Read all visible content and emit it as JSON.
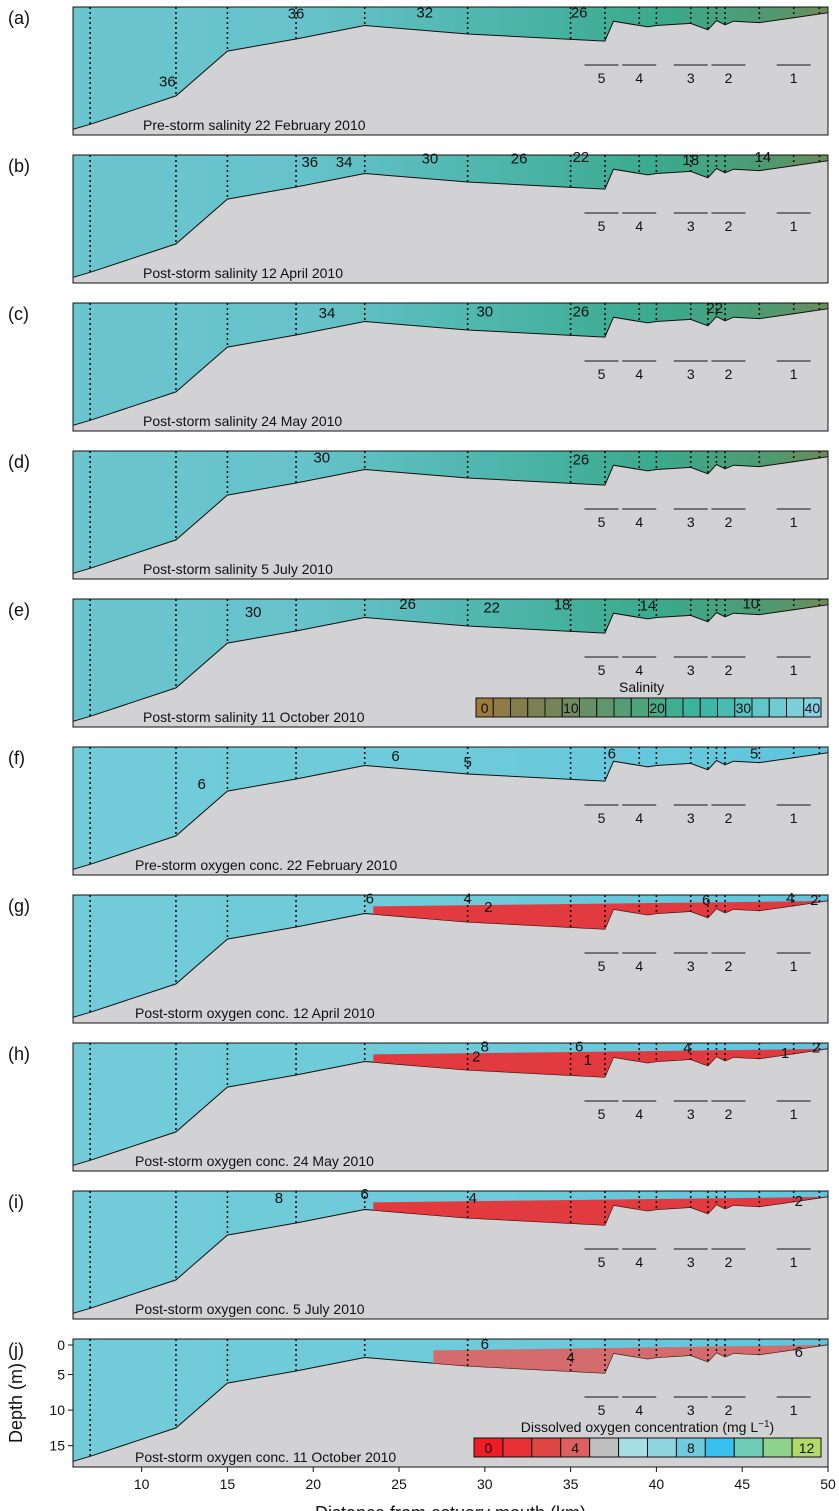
{
  "chart_data": {
    "type": "contour-section",
    "xlabel": "Distance from estuary mouth (km)",
    "ylabel": "Depth (m)",
    "xlim": [
      6,
      50
    ],
    "ylim": [
      0,
      18
    ],
    "xticks": [
      10,
      15,
      20,
      25,
      30,
      35,
      40,
      45,
      50
    ],
    "yticks": [
      0,
      5,
      10,
      15
    ],
    "bottom_profile_km": [
      6,
      7,
      12,
      15,
      19,
      23,
      29,
      37,
      37.5,
      39.5,
      40,
      42,
      43,
      43.5,
      44,
      44.5,
      46,
      48,
      50
    ],
    "bottom_profile_depth_m": [
      17.2,
      16.5,
      12.5,
      6.2,
      4.5,
      2.6,
      3.8,
      4.8,
      2.0,
      2.8,
      2.6,
      2.3,
      3.2,
      1.9,
      2.5,
      2.0,
      2.2,
      1.5,
      0.8
    ],
    "stations": [
      {
        "label": "5",
        "km": 36.8
      },
      {
        "label": "4",
        "km": 39.0
      },
      {
        "label": "3",
        "km": 42.0
      },
      {
        "label": "2",
        "km": 44.2
      },
      {
        "label": "1",
        "km": 48.0
      }
    ],
    "panels": [
      {
        "id": "(a)",
        "caption": "Pre-storm salinity 22 February 2010",
        "variable": "salinity",
        "contour_labels": [
          {
            "v": "36",
            "x": 19.0,
            "y": 0.9
          },
          {
            "v": "32",
            "x": 26.5,
            "y": 0.8
          },
          {
            "v": "26",
            "x": 35.5,
            "y": 0.8
          },
          {
            "v": "36",
            "x": 11.5,
            "y": 10.5
          }
        ]
      },
      {
        "id": "(b)",
        "caption": "Post-storm salinity 12 April 2010",
        "variable": "salinity",
        "contour_labels": [
          {
            "v": "36",
            "x": 19.8,
            "y": 1.0
          },
          {
            "v": "34",
            "x": 21.8,
            "y": 1.0
          },
          {
            "v": "30",
            "x": 26.8,
            "y": 0.5
          },
          {
            "v": "26",
            "x": 32.0,
            "y": 0.5
          },
          {
            "v": "22",
            "x": 35.6,
            "y": 0.3
          },
          {
            "v": "18",
            "x": 42.0,
            "y": 0.7
          },
          {
            "v": "14",
            "x": 46.2,
            "y": 0.3
          }
        ]
      },
      {
        "id": "(c)",
        "caption": "Post-storm salinity 24 May 2010",
        "variable": "salinity",
        "contour_labels": [
          {
            "v": "34",
            "x": 20.8,
            "y": 1.4
          },
          {
            "v": "30",
            "x": 30.0,
            "y": 1.2
          },
          {
            "v": "26",
            "x": 35.6,
            "y": 1.2
          },
          {
            "v": "22",
            "x": 43.4,
            "y": 0.7
          }
        ]
      },
      {
        "id": "(d)",
        "caption": "Post-storm salinity 5 July 2010",
        "variable": "salinity",
        "contour_labels": [
          {
            "v": "30",
            "x": 20.5,
            "y": 0.9
          },
          {
            "v": "26",
            "x": 35.6,
            "y": 1.2
          }
        ]
      },
      {
        "id": "(e)",
        "caption": "Post-storm salinity 11 October 2010",
        "variable": "salinity",
        "contour_labels": [
          {
            "v": "30",
            "x": 16.5,
            "y": 1.8
          },
          {
            "v": "26",
            "x": 25.5,
            "y": 0.7
          },
          {
            "v": "22",
            "x": 30.4,
            "y": 1.2
          },
          {
            "v": "18",
            "x": 34.5,
            "y": 0.8
          },
          {
            "v": "14",
            "x": 39.5,
            "y": 0.9
          },
          {
            "v": "10",
            "x": 45.5,
            "y": 0.6
          }
        ]
      },
      {
        "id": "(f)",
        "caption": "Pre-storm oxygen conc. 22 February 2010",
        "variable": "oxygen",
        "contour_labels": [
          {
            "v": "6",
            "x": 24.8,
            "y": 1.3
          },
          {
            "v": "6",
            "x": 13.5,
            "y": 5.2
          },
          {
            "v": "5",
            "x": 29.0,
            "y": 2.1
          },
          {
            "v": "6",
            "x": 37.4,
            "y": 0.9
          },
          {
            "v": "5",
            "x": 45.7,
            "y": 0.9
          }
        ]
      },
      {
        "id": "(g)",
        "caption": "Post-storm oxygen conc. 12 April 2010",
        "variable": "oxygen",
        "contour_labels": [
          {
            "v": "6",
            "x": 23.3,
            "y": 0.5
          },
          {
            "v": "4",
            "x": 29.0,
            "y": 0.5
          },
          {
            "v": "2",
            "x": 30.2,
            "y": 1.7
          },
          {
            "v": "6",
            "x": 42.9,
            "y": 0.7
          },
          {
            "v": "4",
            "x": 47.8,
            "y": 0.4
          },
          {
            "v": "2",
            "x": 49.2,
            "y": 0.7
          }
        ]
      },
      {
        "id": "(h)",
        "caption": "Post-storm oxygen conc. 24 May 2010",
        "variable": "oxygen",
        "contour_labels": [
          {
            "v": "8",
            "x": 30.0,
            "y": 0.5
          },
          {
            "v": "6",
            "x": 35.5,
            "y": 0.5
          },
          {
            "v": "4",
            "x": 41.8,
            "y": 0.7
          },
          {
            "v": "2",
            "x": 29.5,
            "y": 1.9
          },
          {
            "v": "1",
            "x": 36.0,
            "y": 2.4
          },
          {
            "v": "1",
            "x": 47.5,
            "y": 1.4
          },
          {
            "v": "2",
            "x": 49.3,
            "y": 0.6
          }
        ]
      },
      {
        "id": "(i)",
        "caption": "Post-storm oxygen conc. 5 July 2010",
        "variable": "oxygen",
        "contour_labels": [
          {
            "v": "8",
            "x": 18.0,
            "y": 1.0
          },
          {
            "v": "6",
            "x": 23.0,
            "y": 0.4
          },
          {
            "v": "4",
            "x": 29.3,
            "y": 1.0
          },
          {
            "v": "2",
            "x": 48.3,
            "y": 1.4
          }
        ]
      },
      {
        "id": "(j)",
        "caption": "Post-storm oxygen conc. 11 October 2010",
        "variable": "oxygen",
        "contour_labels": [
          {
            "v": "6",
            "x": 30.0,
            "y": 0.7
          },
          {
            "v": "4",
            "x": 35.0,
            "y": 2.6
          },
          {
            "v": "6",
            "x": 48.3,
            "y": 1.8
          }
        ]
      }
    ],
    "legends": [
      {
        "title": "Salinity",
        "in_panel": "(e)",
        "colors": [
          "#9c7a3c",
          "#8e7b45",
          "#857d4c",
          "#7d8052",
          "#768558",
          "#6f8a5e",
          "#679065",
          "#5f966c",
          "#569c74",
          "#4ea27c",
          "#46a886",
          "#3fae91",
          "#3cb39b",
          "#3fb7a7",
          "#48bcb3",
          "#55c2bf",
          "#62c6c9",
          "#6fcad2",
          "#7ccfdb",
          "#88d3e3"
        ],
        "tick_values": [
          "0",
          "10",
          "20",
          "30",
          "40"
        ],
        "tick_indices": [
          0,
          5,
          10,
          15,
          19
        ]
      },
      {
        "title": "Dissolved oxygen concentration (mg L",
        "title_sup": "−1",
        "title_end": ")",
        "in_panel": "(j)",
        "colors": [
          "#ee1c25",
          "#e63035",
          "#e04545",
          "#dc6060",
          "#c0c0c0",
          "#a6dfe3",
          "#8fd5e0",
          "#6fcadc",
          "#38c1ef",
          "#6ecbb6",
          "#8ed28e",
          "#b3d96b"
        ],
        "tick_values": [
          "0",
          "4",
          "8",
          "12"
        ],
        "tick_indices": [
          0,
          3,
          7,
          11
        ]
      }
    ]
  }
}
